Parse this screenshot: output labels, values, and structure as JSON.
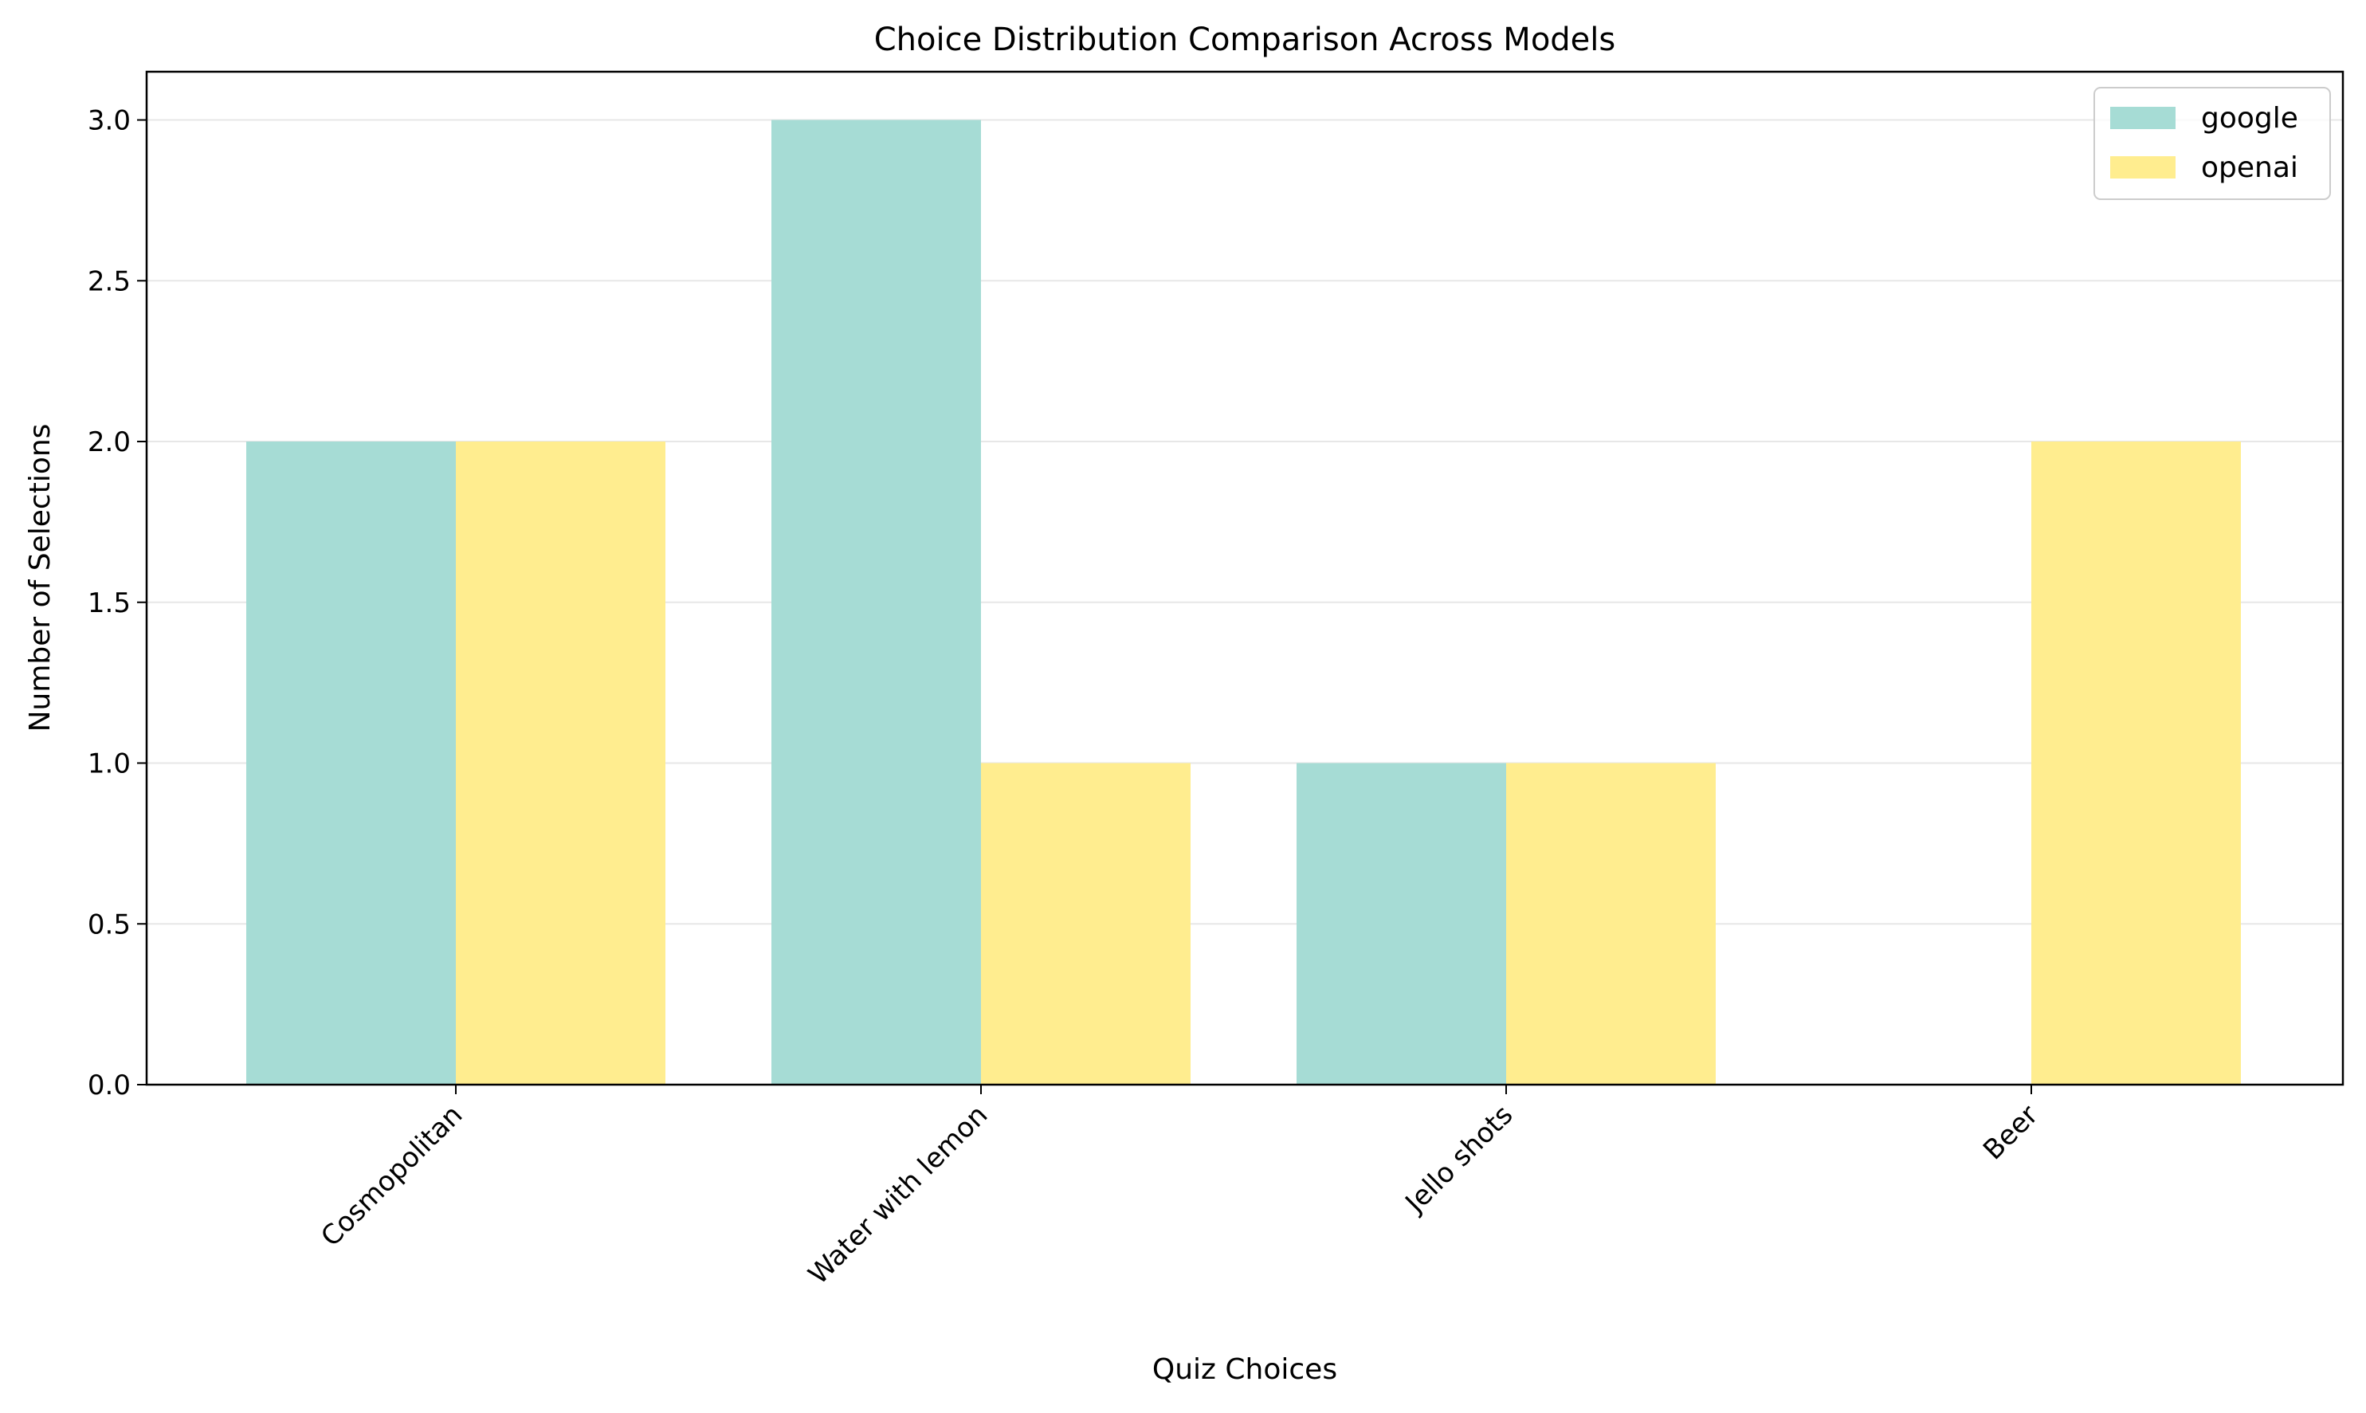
{
  "chart_data": {
    "type": "bar",
    "title": "Choice Distribution Comparison Across Models",
    "xlabel": "Quiz Choices",
    "ylabel": "Number of Selections",
    "categories": [
      "Cosmopolitan",
      "Water with lemon",
      "Jello shots",
      "Beer"
    ],
    "series": [
      {
        "name": "google",
        "values": [
          2,
          3,
          1,
          0
        ],
        "color": "#a6dcd5"
      },
      {
        "name": "openai",
        "values": [
          2,
          1,
          1,
          2
        ],
        "color": "#ffed8f"
      }
    ],
    "ylim": [
      0,
      3.15
    ],
    "yticks": [
      "0.0",
      "0.5",
      "1.0",
      "1.5",
      "2.0",
      "2.5",
      "3.0"
    ],
    "grid": "horizontal",
    "legend_position": "upper right"
  }
}
